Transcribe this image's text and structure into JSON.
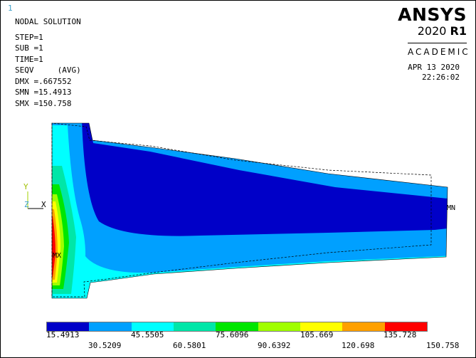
{
  "window_number": "1",
  "info": {
    "title": "NODAL SOLUTION",
    "step": "STEP=1",
    "sub": "SUB =1",
    "time": "TIME=1",
    "result": "SEQV     (AVG)",
    "dmx": "DMX =.667552",
    "smn": "SMN =15.4913",
    "smx": "SMX =150.758"
  },
  "brand": {
    "name": "ANSYS",
    "year": "2020",
    "release": "R1",
    "edition": "ACADEMIC"
  },
  "date": "APR 13 2020",
  "time": "22:26:02",
  "triad": {
    "y": "Y",
    "z": "Z",
    "x": "X"
  },
  "markers": {
    "mx": "MX",
    "mn": "MN"
  },
  "legend": {
    "colors": [
      "#0000c8",
      "#00a0ff",
      "#00ffff",
      "#00e6a8",
      "#00e600",
      "#a0ff00",
      "#ffff00",
      "#ffa000",
      "#ff0000"
    ],
    "top_labels": [
      "15.4913",
      "45.5505",
      "75.6096",
      "105.669",
      "135.728"
    ],
    "bottom_labels": [
      "30.5209",
      "60.5801",
      "90.6392",
      "120.698",
      "150.758"
    ]
  }
}
